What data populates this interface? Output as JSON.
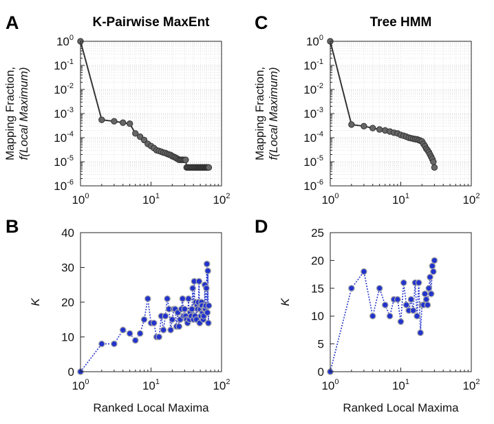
{
  "chart_data": [
    {
      "panel": "A",
      "type": "line",
      "title": "K-Pairwise MaxEnt",
      "xscale": "log",
      "yscale": "log",
      "xlim": [
        1,
        100
      ],
      "ylim": [
        1e-06,
        1
      ],
      "xticks": [
        {
          "base": "10",
          "exp": "0"
        },
        {
          "base": "10",
          "exp": "1"
        },
        {
          "base": "10",
          "exp": "2"
        }
      ],
      "yticks": [
        {
          "base": "10",
          "exp": "0"
        },
        {
          "base": "10",
          "exp": "-1"
        },
        {
          "base": "10",
          "exp": "-2"
        },
        {
          "base": "10",
          "exp": "-3"
        },
        {
          "base": "10",
          "exp": "-4"
        },
        {
          "base": "10",
          "exp": "-5"
        },
        {
          "base": "10",
          "exp": "-6"
        }
      ],
      "ylabel_line1": "Mapping Fraction,",
      "ylabel_line2": "f(Local Maximum)",
      "xlabel": "",
      "grid": true,
      "color": "#333333",
      "marker_color": "#666666",
      "x": [
        1,
        2,
        3,
        4,
        5,
        6,
        7,
        8,
        9,
        10,
        11,
        12,
        13,
        14,
        15,
        16,
        17,
        18,
        19,
        20,
        21,
        22,
        23,
        24,
        25,
        26,
        27,
        28,
        29,
        30,
        31,
        32,
        33,
        34,
        35,
        36,
        37,
        38,
        39,
        40,
        41,
        42,
        43,
        44,
        45,
        46,
        47,
        48,
        49,
        50,
        51,
        52,
        53,
        54,
        55,
        56,
        57,
        58,
        59,
        60,
        61,
        62,
        63,
        64,
        65,
        66
      ],
      "y": [
        1,
        0.00055,
        0.00048,
        0.00042,
        0.00038,
        0.00015,
        0.00011,
        8e-05,
        5.5e-05,
        4.5e-05,
        3.7e-05,
        3e-05,
        2.8e-05,
        2.6e-05,
        2.4e-05,
        2.3e-05,
        2.1e-05,
        2e-05,
        1.9e-05,
        1.7e-05,
        1.6e-05,
        1.5e-05,
        1.4e-05,
        1.3e-05,
        1.2e-05,
        1.2e-05,
        1.2e-05,
        1.2e-05,
        1.2e-05,
        1.2e-05,
        1.2e-05,
        5.8e-06,
        5.8e-06,
        5.8e-06,
        5.8e-06,
        5.8e-06,
        5.8e-06,
        5.8e-06,
        5.8e-06,
        5.8e-06,
        5.8e-06,
        5.8e-06,
        5.8e-06,
        5.8e-06,
        5.8e-06,
        5.8e-06,
        5.8e-06,
        5.8e-06,
        5.8e-06,
        5.8e-06,
        5.8e-06,
        5.8e-06,
        5.8e-06,
        5.8e-06,
        5.8e-06,
        5.8e-06,
        5.8e-06,
        5.8e-06,
        5.8e-06,
        5.8e-06,
        5.8e-06,
        5.8e-06,
        5.8e-06,
        5.8e-06,
        5.8e-06,
        5.8e-06
      ]
    },
    {
      "panel": "C",
      "type": "line",
      "title": "Tree HMM",
      "xscale": "log",
      "yscale": "log",
      "xlim": [
        1,
        100
      ],
      "ylim": [
        1e-06,
        1
      ],
      "xticks": [
        {
          "base": "10",
          "exp": "0"
        },
        {
          "base": "10",
          "exp": "1"
        },
        {
          "base": "10",
          "exp": "2"
        }
      ],
      "yticks": [
        {
          "base": "10",
          "exp": "0"
        },
        {
          "base": "10",
          "exp": "-1"
        },
        {
          "base": "10",
          "exp": "-2"
        },
        {
          "base": "10",
          "exp": "-3"
        },
        {
          "base": "10",
          "exp": "-4"
        },
        {
          "base": "10",
          "exp": "-5"
        },
        {
          "base": "10",
          "exp": "-6"
        }
      ],
      "ylabel_line1": "Mapping Fraction,",
      "ylabel_line2": "f(Local Maximum)",
      "xlabel": "",
      "grid": true,
      "color": "#333333",
      "marker_color": "#666666",
      "x": [
        1,
        2,
        3,
        4,
        5,
        6,
        7,
        8,
        9,
        10,
        11,
        12,
        13,
        14,
        15,
        16,
        17,
        18,
        19,
        20,
        21,
        22,
        23,
        24,
        25,
        26,
        27,
        28,
        29,
        30
      ],
      "y": [
        1,
        0.00035,
        0.0003,
        0.00025,
        0.00022,
        0.0002,
        0.00018,
        0.00016,
        0.00015,
        0.00013,
        0.00012,
        0.00011,
        0.0001,
        9.5e-05,
        9e-05,
        8.7e-05,
        8.5e-05,
        8e-05,
        7.5e-05,
        7e-05,
        5.5e-05,
        4.5e-05,
        3.5e-05,
        3e-05,
        2.5e-05,
        2e-05,
        1.6e-05,
        1.3e-05,
        1e-05,
        5.8e-06
      ]
    },
    {
      "panel": "B",
      "type": "scatter",
      "title": "",
      "xscale": "log",
      "yscale": "linear",
      "xlim": [
        1,
        100
      ],
      "ylim": [
        0,
        40
      ],
      "xticks": [
        {
          "base": "10",
          "exp": "0"
        },
        {
          "base": "10",
          "exp": "1"
        },
        {
          "base": "10",
          "exp": "2"
        }
      ],
      "yticks_linear": [
        "0",
        "10",
        "20",
        "30",
        "40"
      ],
      "ylabel": "K",
      "xlabel": "Ranked Local Maxima",
      "grid": false,
      "color": "#2233cc",
      "x": [
        1,
        2,
        3,
        4,
        5,
        6,
        7,
        8,
        9,
        10,
        11,
        12,
        13,
        14,
        15,
        16,
        17,
        18,
        19,
        20,
        21,
        22,
        23,
        24,
        25,
        26,
        27,
        28,
        29,
        30,
        31,
        32,
        33,
        34,
        35,
        36,
        37,
        38,
        39,
        40,
        41,
        42,
        43,
        44,
        45,
        46,
        47,
        48,
        49,
        50,
        51,
        52,
        53,
        54,
        55,
        56,
        57,
        58,
        59,
        60,
        61,
        62,
        63,
        64,
        65,
        66
      ],
      "y": [
        0,
        8,
        8,
        12,
        11,
        9,
        11,
        15,
        21,
        14,
        14,
        10,
        10,
        16,
        12,
        16,
        21,
        18,
        12,
        15,
        18,
        18,
        13,
        17,
        13,
        15,
        18,
        21,
        16,
        18,
        16,
        15,
        14,
        21,
        15,
        17,
        16,
        18,
        24,
        15,
        26,
        16,
        20,
        15,
        19,
        18,
        20,
        26,
        14,
        18,
        16,
        20,
        19,
        17,
        15,
        16,
        18,
        25,
        18,
        19,
        24,
        31,
        17,
        29,
        14,
        19
      ]
    },
    {
      "panel": "D",
      "type": "scatter",
      "title": "",
      "xscale": "log",
      "yscale": "linear",
      "xlim": [
        1,
        100
      ],
      "ylim": [
        0,
        25
      ],
      "xticks": [
        {
          "base": "10",
          "exp": "0"
        },
        {
          "base": "10",
          "exp": "1"
        },
        {
          "base": "10",
          "exp": "2"
        }
      ],
      "yticks_linear": [
        "0",
        "5",
        "10",
        "15",
        "20",
        "25"
      ],
      "ylabel": "K",
      "xlabel": "Ranked Local Maxima",
      "grid": false,
      "color": "#2233cc",
      "x": [
        1,
        2,
        3,
        4,
        5,
        6,
        7,
        8,
        9,
        10,
        11,
        12,
        13,
        14,
        15,
        16,
        17,
        18,
        19,
        20,
        21,
        22,
        23,
        24,
        25,
        26,
        27,
        28,
        29,
        30
      ],
      "y": [
        0,
        15,
        18,
        10,
        15,
        12,
        10,
        13,
        13,
        9,
        16,
        12,
        11,
        13,
        11,
        16,
        10,
        16,
        7,
        12,
        12,
        14,
        13,
        12,
        15,
        17,
        14,
        19,
        18,
        20
      ]
    }
  ],
  "panels": {
    "A": "A",
    "B": "B",
    "C": "C",
    "D": "D"
  }
}
